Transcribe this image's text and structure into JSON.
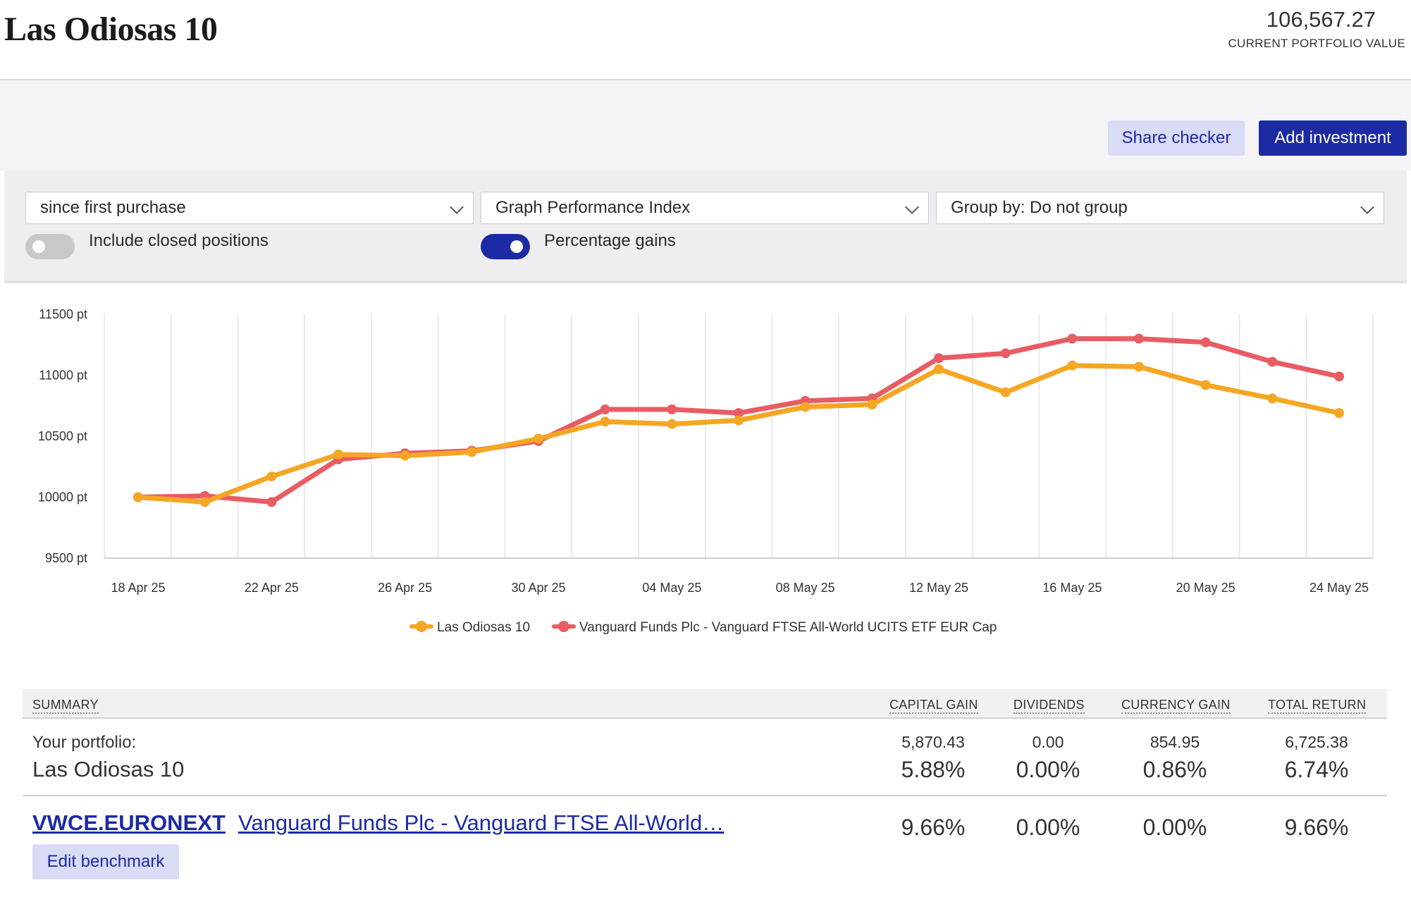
{
  "header": {
    "title": "Las Odiosas 10",
    "portfolio_value": "106,567.27",
    "portfolio_value_caption": "CURRENT PORTFOLIO VALUE"
  },
  "actions": {
    "share_checker": "Share checker",
    "add_investment": "Add investment"
  },
  "controls": {
    "period": "since first purchase",
    "graph_type": "Graph Performance Index",
    "group_by": "Group by: Do not group",
    "include_closed": {
      "label": "Include closed positions",
      "on": false
    },
    "percentage_gains": {
      "label": "Percentage gains",
      "on": true
    }
  },
  "colors": {
    "accent": "#1c2aa3",
    "portfolio_series": "#f5a623",
    "benchmark_series": "#e85c64"
  },
  "chart_data": {
    "type": "line",
    "x": [
      "18 Apr 25",
      "20 Apr 25",
      "22 Apr 25",
      "24 Apr 25",
      "26 Apr 25",
      "28 Apr 25",
      "30 Apr 25",
      "02 May 25",
      "04 May 25",
      "06 May 25",
      "08 May 25",
      "10 May 25",
      "12 May 25",
      "14 May 25",
      "16 May 25",
      "18 May 25",
      "20 May 25",
      "22 May 25",
      "24 May 25"
    ],
    "x_tick_labels": [
      "18 Apr 25",
      "22 Apr 25",
      "26 Apr 25",
      "30 Apr 25",
      "04 May 25",
      "08 May 25",
      "12 May 25",
      "16 May 25",
      "20 May 25",
      "24 May 25"
    ],
    "y_tick_labels": [
      "11500 pt",
      "11000 pt",
      "10500 pt",
      "10000 pt",
      "9500 pt"
    ],
    "ylim": [
      9500,
      11500
    ],
    "grid": true,
    "legend_position": "bottom",
    "series": [
      {
        "name": "Las Odiosas 10",
        "color": "#f5a623",
        "values": [
          10000,
          9960,
          10170,
          10350,
          10340,
          10370,
          10480,
          10620,
          10600,
          10630,
          10740,
          10760,
          11050,
          10860,
          11080,
          11070,
          10920,
          10810,
          10690
        ]
      },
      {
        "name": "Vanguard Funds Plc - Vanguard FTSE All-World UCITS ETF EUR Cap",
        "color": "#e85c64",
        "values": [
          10000,
          10010,
          9960,
          10310,
          10360,
          10380,
          10460,
          10720,
          10720,
          10690,
          10790,
          10810,
          11140,
          11180,
          11300,
          11300,
          11270,
          11110,
          10990
        ]
      }
    ]
  },
  "summary": {
    "headers": {
      "summary": "SUMMARY",
      "capital_gain": "CAPITAL GAIN",
      "dividends": "DIVIDENDS",
      "currency_gain": "CURRENCY GAIN",
      "total_return": "TOTAL RETURN"
    },
    "portfolio_row": {
      "label": "Your portfolio:",
      "name": "Las Odiosas 10",
      "capital_gain": "5,870.43",
      "capital_gain_pct": "5.88%",
      "dividends": "0.00",
      "dividends_pct": "0.00%",
      "currency_gain": "854.95",
      "currency_gain_pct": "0.86%",
      "total_return": "6,725.38",
      "total_return_pct": "6.74%"
    },
    "benchmark_row": {
      "ticker": "VWCE.EURONEXT",
      "name": "Vanguard Funds Plc - Vanguard FTSE All-World…",
      "edit_label": "Edit benchmark",
      "capital_gain_pct": "9.66%",
      "dividends_pct": "0.00%",
      "currency_gain_pct": "0.00%",
      "total_return_pct": "9.66%"
    }
  }
}
